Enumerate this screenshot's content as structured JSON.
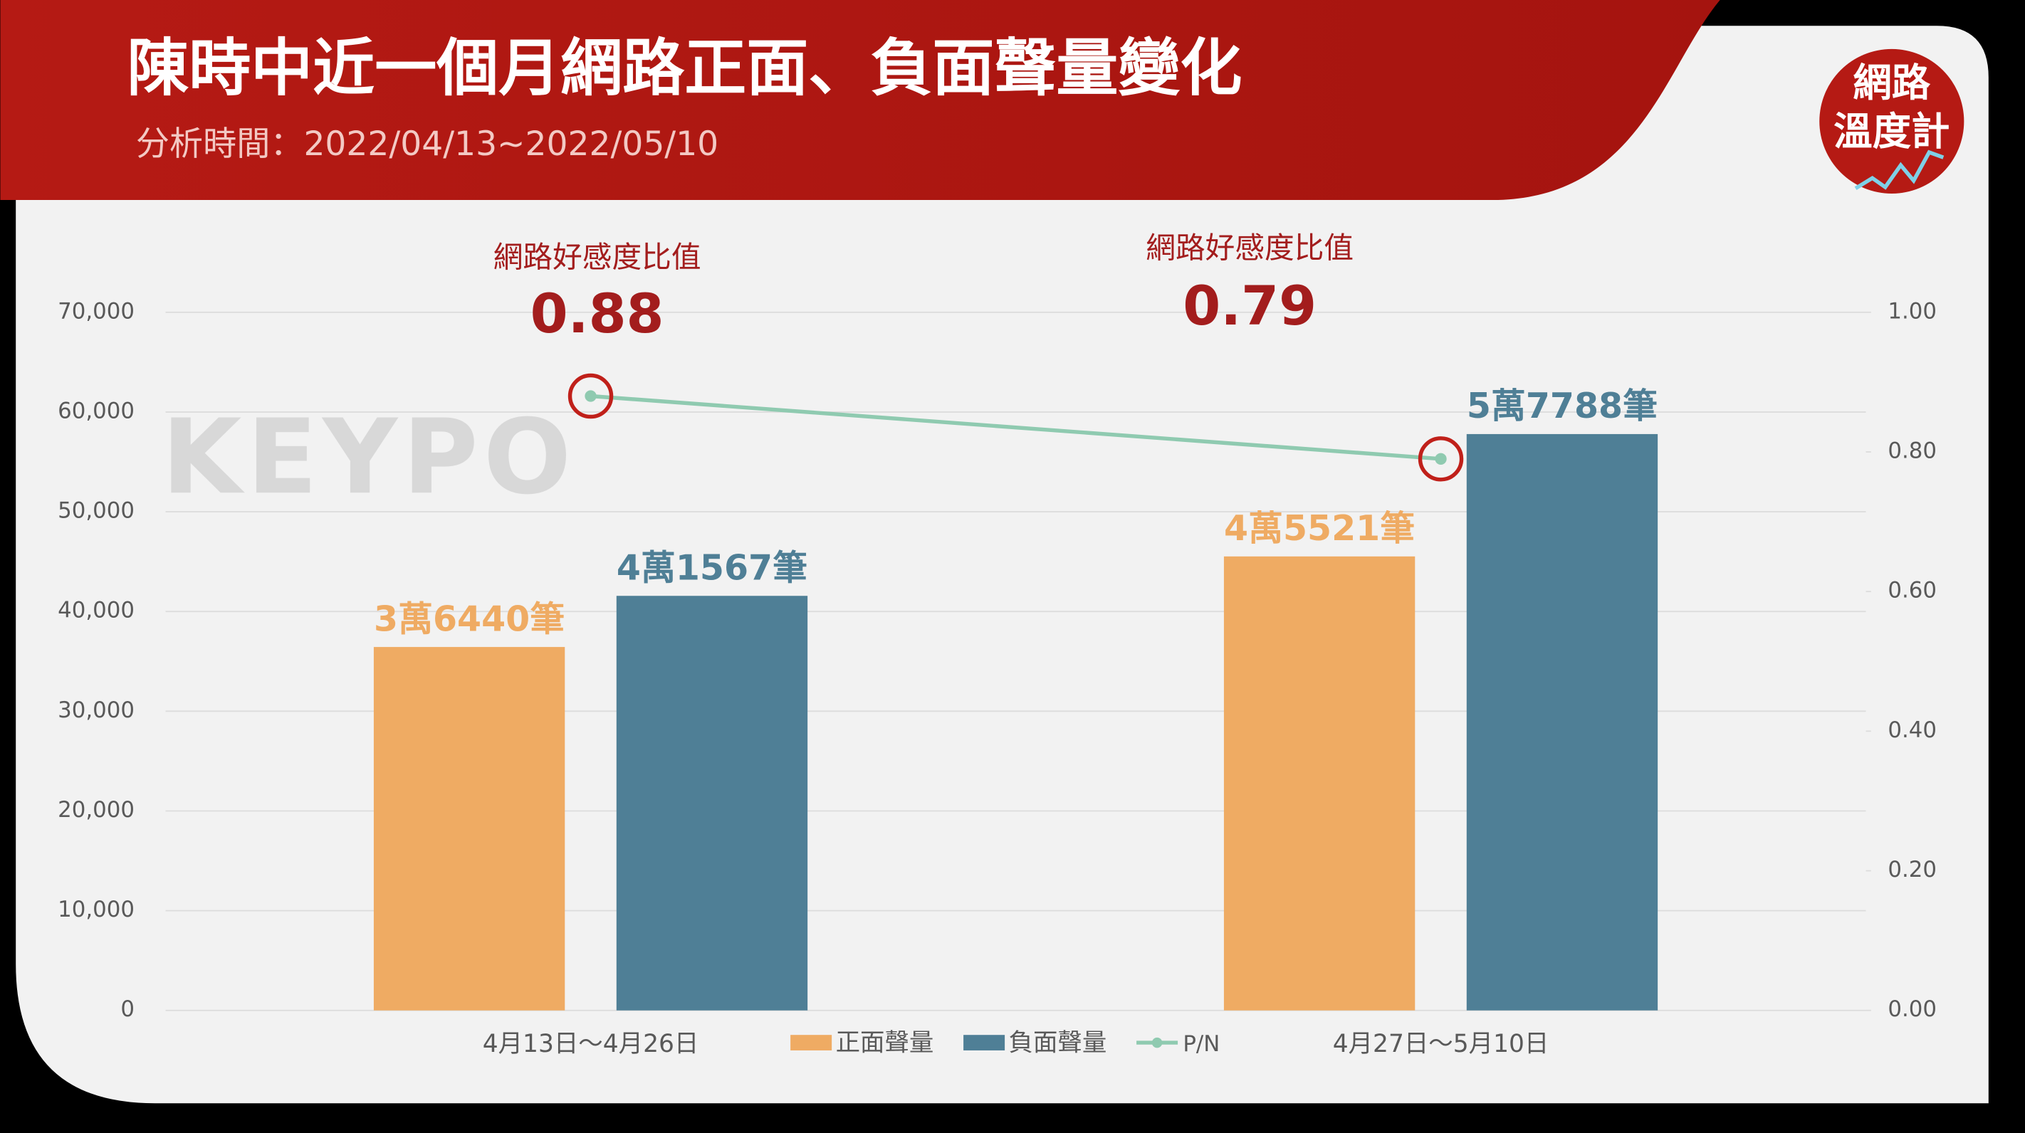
{
  "title": "陳時中近一個月網路正面、負面聲量變化",
  "subtitle": "分析時間：2022/04/13~2022/05/10",
  "logo": {
    "lines": [
      "網路",
      "溫度計"
    ]
  },
  "watermark": "KEYPO",
  "chart_data": {
    "type": "bar",
    "categories": [
      "4月13日～4月26日",
      "4月27日～5月10日"
    ],
    "series": [
      {
        "name": "正面聲量",
        "color": "#efab63",
        "values": [
          36440,
          45521
        ],
        "value_labels": [
          "3萬6440筆",
          "4萬5521筆"
        ]
      },
      {
        "name": "負面聲量",
        "color": "#4f7f96",
        "values": [
          41567,
          57788
        ],
        "value_labels": [
          "4萬1567筆",
          "5萬7788筆"
        ]
      },
      {
        "name": "P/N",
        "type": "line",
        "axis": "y2",
        "color": "#8fcab0",
        "values": [
          0.88,
          0.79
        ],
        "value_labels": [
          "0.88",
          "0.79"
        ]
      }
    ],
    "annotations": [
      "網路好感度比值",
      "網路好感度比值"
    ],
    "ylim": [
      0,
      70000
    ],
    "yticks": [
      0,
      {
        "value": 10000,
        "label": "10,000"
      },
      {
        "value": 20000,
        "label": "20,000"
      },
      {
        "value": 30000,
        "label": "30,000"
      },
      {
        "value": 40000,
        "label": "40,000"
      },
      {
        "value": 50000,
        "label": "50,000"
      },
      {
        "value": 60000,
        "label": "60,000"
      },
      {
        "value": 70000,
        "label": "70,000"
      }
    ],
    "y2lim": [
      0,
      1
    ],
    "y2ticks": [
      {
        "value": 0,
        "label": "0.00"
      },
      {
        "value": 0.2,
        "label": "0.20"
      },
      {
        "value": 0.4,
        "label": "0.40"
      },
      {
        "value": 0.6,
        "label": "0.60"
      },
      {
        "value": 0.8,
        "label": "0.80"
      },
      {
        "value": 1,
        "label": "1.00"
      }
    ],
    "grid": true,
    "legend": "bottom"
  }
}
